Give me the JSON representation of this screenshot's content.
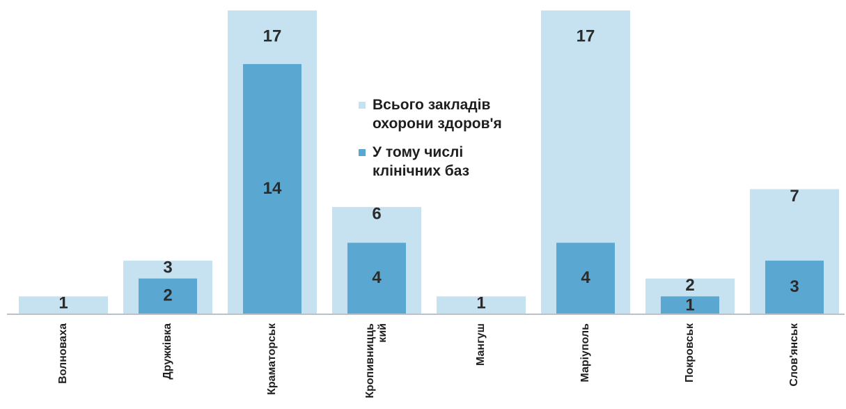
{
  "chart_data": {
    "type": "bar",
    "categories": [
      "Волноваха",
      "Дружківка",
      "Краматорськ",
      "Кропивницький",
      "Мангуш",
      "Маріуполь",
      "Покровськ",
      "Слов'янськ"
    ],
    "category_label_lines": [
      [
        "Волноваха"
      ],
      [
        "Дружківка"
      ],
      [
        "Краматорськ"
      ],
      [
        "Кропивницць",
        "кий"
      ],
      [
        "Мангуш"
      ],
      [
        "Маріуполь"
      ],
      [
        "Покровськ"
      ],
      [
        "Слов'янськ"
      ]
    ],
    "series": [
      {
        "name": "Всього закладів охорони здоров'я",
        "legend_lines": [
          "Всього закладів",
          "охорони здоров'я"
        ],
        "values": [
          1,
          3,
          17,
          6,
          1,
          17,
          2,
          7
        ],
        "color": "#c6e2f1"
      },
      {
        "name": "У тому числі клінічних баз",
        "legend_lines": [
          "У тому числі",
          "клінічних баз"
        ],
        "values": [
          0,
          2,
          14,
          4,
          0,
          4,
          1,
          3
        ],
        "color": "#5aa7d2"
      }
    ],
    "data_labels": {
      "total": [
        "1",
        "3",
        "17",
        "6",
        "1",
        "17",
        "2",
        "7"
      ],
      "clinical": [
        "",
        "2",
        "14",
        "4",
        "",
        "4",
        "1",
        "3"
      ]
    },
    "ylim": [
      0,
      17
    ],
    "grid": false,
    "legend_position": "center"
  }
}
